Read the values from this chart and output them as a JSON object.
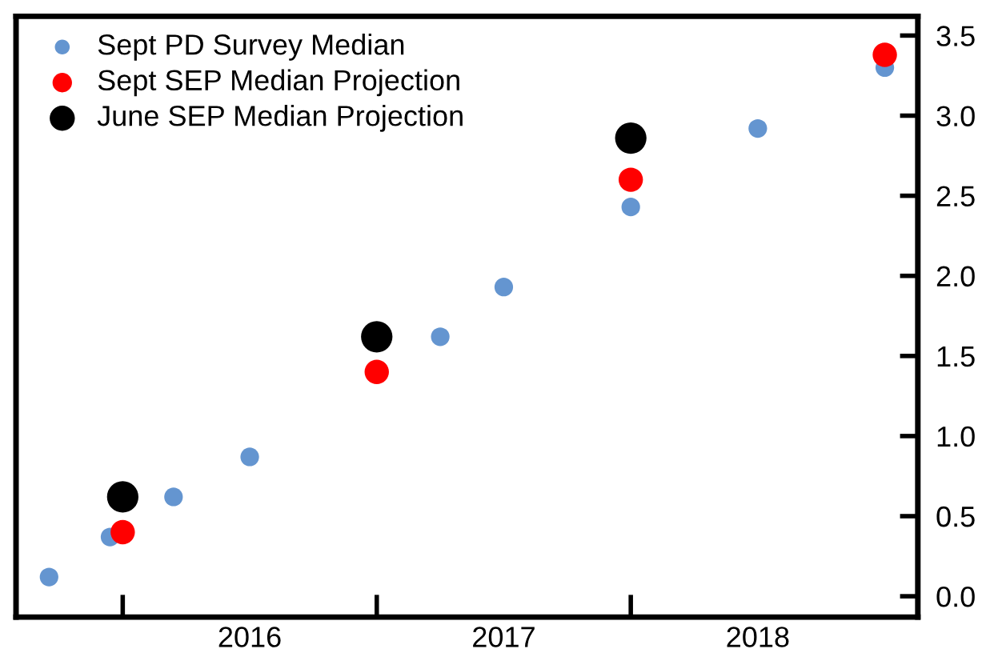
{
  "chart_data": {
    "type": "scatter",
    "series": [
      {
        "name": "Sept PD Survey Median",
        "color": "#6495d0",
        "x": [
          2015.71,
          2015.95,
          2016.2,
          2016.5,
          2017.25,
          2017.5,
          2018.0,
          2018.5,
          2019.0
        ],
        "values": [
          0.12,
          0.37,
          0.62,
          0.87,
          1.62,
          1.93,
          2.43,
          2.92,
          3.3
        ]
      },
      {
        "name": "Sept SEP Median Projection",
        "color": "#ff0000",
        "x": [
          2016.0,
          2017.0,
          2018.0,
          2019.0
        ],
        "values": [
          0.4,
          1.4,
          2.6,
          3.38
        ]
      },
      {
        "name": "June SEP Median Projection",
        "color": "#000000",
        "x": [
          2016.0,
          2017.0,
          2018.0
        ],
        "values": [
          0.62,
          1.62,
          2.86
        ]
      }
    ],
    "xlim": [
      2015.58,
      2019.13
    ],
    "xticks": [
      {
        "value": 2016,
        "label": null
      },
      {
        "value": 2016.5,
        "label": "2016"
      },
      {
        "value": 2017,
        "label": null
      },
      {
        "value": 2017.5,
        "label": "2017"
      },
      {
        "value": 2018,
        "label": null
      },
      {
        "value": 2018.5,
        "label": "2018"
      }
    ],
    "ylim": [
      -0.13,
      3.62
    ],
    "yticks": [
      {
        "value": 0,
        "label": "0.0"
      },
      {
        "value": 0.5,
        "label": "0.5"
      },
      {
        "value": 1,
        "label": "1.0"
      },
      {
        "value": 1.5,
        "label": "1.5"
      },
      {
        "value": 2,
        "label": "2.0"
      },
      {
        "value": 2.5,
        "label": "2.5"
      },
      {
        "value": 3,
        "label": "3.0"
      },
      {
        "value": 3.5,
        "label": "3.5"
      }
    ],
    "marker": "circle",
    "legend": "top left",
    "grid": false
  }
}
